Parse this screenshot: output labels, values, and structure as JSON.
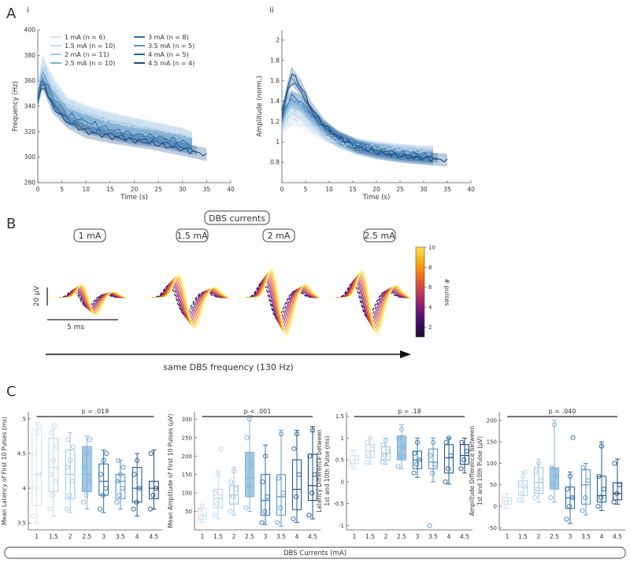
{
  "panel_labels": {
    "A": "A",
    "B": "B",
    "C": "C",
    "i": "i",
    "ii": "ii"
  },
  "colors": {
    "currents": [
      "#d4e3f1",
      "#bcd7ec",
      "#9ec6e3",
      "#7fb2d8",
      "#2f6ea8",
      "#5a97c8",
      "#215d97",
      "#174b80"
    ],
    "axis": "#444444",
    "sig": "#222222",
    "pulse_scale": [
      "#1b0b36",
      "#4a0f6d",
      "#7b1e7a",
      "#a52c60",
      "#cf4446",
      "#ed6925",
      "#fb9b06",
      "#f7d13d",
      "#fcffa4"
    ]
  },
  "legend": [
    "1 mA (n = 6)",
    "1.5 mA (n = 10)",
    "2 mA (n = 11)",
    "2.5 mA (n = 10)",
    "3 mA (n = 8)",
    "3.5 mA (n = 5)",
    "4 mA (n = 5)",
    "4.5 mA (n = 4)"
  ],
  "chart_data": [
    {
      "id": "A-i",
      "type": "line",
      "xlabel": "Time (s)",
      "ylabel": "Frequency (Hz)",
      "xlim": [
        0,
        40
      ],
      "ylim": [
        280,
        400
      ],
      "xticks": [
        0,
        5,
        10,
        15,
        20,
        25,
        30,
        35,
        40
      ],
      "yticks": [
        280,
        300,
        320,
        340,
        360,
        380,
        400
      ],
      "series": [
        {
          "name": "1 mA (n = 6)",
          "x": [
            0,
            1,
            3,
            6,
            10,
            15,
            20,
            25,
            30,
            32
          ],
          "values": [
            355,
            378,
            362,
            345,
            338,
            332,
            328,
            324,
            320,
            316
          ]
        },
        {
          "name": "1.5 mA (n = 10)",
          "x": [
            0,
            1,
            3,
            6,
            10,
            15,
            20,
            25,
            30,
            32
          ],
          "values": [
            355,
            375,
            358,
            342,
            336,
            330,
            326,
            322,
            318,
            314
          ]
        },
        {
          "name": "2 mA (n = 11)",
          "x": [
            0,
            1,
            3,
            6,
            10,
            15,
            20,
            25,
            30,
            32
          ],
          "values": [
            352,
            372,
            356,
            340,
            333,
            328,
            324,
            320,
            316,
            314
          ]
        },
        {
          "name": "2.5 mA (n = 10)",
          "x": [
            0,
            1,
            3,
            6,
            10,
            15,
            20,
            25,
            30,
            32
          ],
          "values": [
            350,
            368,
            352,
            338,
            332,
            326,
            322,
            318,
            314,
            312
          ]
        },
        {
          "name": "3 mA (n = 8)",
          "x": [
            0,
            1,
            3,
            6,
            10,
            15,
            20,
            25,
            30,
            32
          ],
          "values": [
            348,
            364,
            348,
            334,
            328,
            322,
            318,
            316,
            312,
            310
          ]
        },
        {
          "name": "3.5 mA (n = 5)",
          "x": [
            0,
            1,
            3,
            6,
            10,
            15,
            20,
            25,
            30,
            32
          ],
          "values": [
            346,
            362,
            346,
            332,
            326,
            320,
            316,
            314,
            310,
            308
          ]
        },
        {
          "name": "4 mA (n = 5)",
          "x": [
            0,
            1,
            3,
            6,
            10,
            15,
            20,
            25,
            30,
            33
          ],
          "values": [
            345,
            360,
            342,
            330,
            322,
            318,
            314,
            312,
            308,
            305
          ]
        },
        {
          "name": "4.5 mA (n = 4)",
          "x": [
            0,
            1,
            3,
            6,
            10,
            15,
            20,
            25,
            30,
            35
          ],
          "values": [
            344,
            358,
            340,
            328,
            320,
            316,
            313,
            310,
            306,
            302
          ]
        }
      ]
    },
    {
      "id": "A-ii",
      "type": "line",
      "xlabel": "Time (s)",
      "ylabel": "Amplitude (norm.)",
      "xlim": [
        0,
        40
      ],
      "ylim": [
        0.6,
        2.1
      ],
      "xticks": [
        0,
        5,
        10,
        15,
        20,
        25,
        30,
        35,
        40
      ],
      "yticks": [
        0.8,
        1.0,
        1.2,
        1.4,
        1.6,
        1.8,
        2.0
      ],
      "ytick_labels": [
        "0.8",
        "1",
        "1.2",
        "1.4",
        "1.6",
        "1.8",
        "2"
      ],
      "series": [
        {
          "name": "1 mA (n = 6)",
          "x": [
            0,
            1,
            2,
            4,
            6,
            9,
            12,
            16,
            20,
            25,
            30,
            32
          ],
          "values": [
            1.1,
            1.15,
            1.2,
            1.18,
            1.12,
            1.05,
            1.0,
            0.96,
            0.95,
            0.93,
            0.92,
            0.92
          ]
        },
        {
          "name": "1.5 mA (n = 10)",
          "x": [
            0,
            1,
            2,
            4,
            6,
            9,
            12,
            16,
            20,
            25,
            30,
            32
          ],
          "values": [
            1.15,
            1.22,
            1.28,
            1.25,
            1.18,
            1.08,
            1.0,
            0.95,
            0.93,
            0.92,
            0.9,
            0.9
          ]
        },
        {
          "name": "2 mA (n = 11)",
          "x": [
            0,
            1,
            2,
            4,
            6,
            9,
            12,
            16,
            20,
            25,
            30,
            32
          ],
          "values": [
            1.18,
            1.28,
            1.34,
            1.3,
            1.22,
            1.1,
            1.02,
            0.96,
            0.93,
            0.9,
            0.88,
            0.88
          ]
        },
        {
          "name": "2.5 mA (n = 10)",
          "x": [
            0,
            1,
            2,
            4,
            6,
            9,
            12,
            16,
            20,
            25,
            30,
            32
          ],
          "values": [
            1.2,
            1.32,
            1.38,
            1.34,
            1.25,
            1.12,
            1.03,
            0.96,
            0.92,
            0.89,
            0.87,
            0.86
          ]
        },
        {
          "name": "3 mA (n = 8)",
          "x": [
            0,
            1,
            2,
            4,
            6,
            9,
            12,
            16,
            20,
            25,
            30,
            32
          ],
          "values": [
            1.22,
            1.38,
            1.45,
            1.4,
            1.28,
            1.14,
            1.04,
            0.96,
            0.92,
            0.88,
            0.86,
            0.85
          ]
        },
        {
          "name": "3.5 mA (n = 5)",
          "x": [
            0,
            1,
            2,
            4,
            6,
            9,
            12,
            16,
            20,
            25,
            30,
            32
          ],
          "values": [
            1.2,
            1.35,
            1.42,
            1.38,
            1.26,
            1.12,
            1.03,
            0.95,
            0.91,
            0.88,
            0.86,
            0.85
          ]
        },
        {
          "name": "4 mA (n = 5)",
          "x": [
            0,
            1,
            2,
            4,
            6,
            9,
            12,
            16,
            20,
            25,
            30,
            33
          ],
          "values": [
            1.25,
            1.45,
            1.6,
            1.5,
            1.32,
            1.15,
            1.04,
            0.96,
            0.91,
            0.87,
            0.85,
            0.84
          ]
        },
        {
          "name": "4.5 mA (n = 4)",
          "x": [
            0,
            1,
            2,
            4,
            6,
            9,
            12,
            16,
            20,
            25,
            30,
            35
          ],
          "values": [
            1.28,
            1.5,
            1.68,
            1.55,
            1.35,
            1.16,
            1.04,
            0.95,
            0.9,
            0.86,
            0.84,
            0.82
          ]
        }
      ]
    },
    {
      "id": "B",
      "type": "line",
      "title": "DBS currents",
      "currents": [
        "1 mA",
        "1.5 mA",
        "2 mA",
        "2.5 mA"
      ],
      "amplitude_scale": [
        0.45,
        0.8,
        1.0,
        0.95
      ],
      "scale_y_label": "20 µV",
      "scale_x_label": "5 ms",
      "colorbar": {
        "label": "# pulses",
        "min": 1,
        "max": 10,
        "ticks": [
          2,
          4,
          6,
          8,
          10
        ]
      },
      "arrow_label": "same DBS frequency (130 Hz)"
    },
    {
      "id": "C-1",
      "type": "box",
      "ylabel": [
        "Mean Latency of First 10 Pulses (ms)"
      ],
      "categories": [
        "1",
        "1.5",
        "2",
        "2.5",
        "3",
        "3.5",
        "4",
        "4.5"
      ],
      "ylim": [
        3.4,
        5.1
      ],
      "yticks": [
        3.5,
        4.0,
        4.5,
        5.0
      ],
      "ytick_labels": [
        "3.5",
        "4",
        "4.5",
        "5"
      ],
      "significance": "p = .018",
      "boxes": [
        [
          3.5,
          3.75,
          4.2,
          4.85,
          4.95
        ],
        [
          3.6,
          3.95,
          4.3,
          4.72,
          4.85
        ],
        [
          3.65,
          3.85,
          4.2,
          4.55,
          4.8
        ],
        [
          3.7,
          3.95,
          4.2,
          4.6,
          4.75
        ],
        [
          3.65,
          3.9,
          4.1,
          4.35,
          4.55
        ],
        [
          3.7,
          3.85,
          4.1,
          4.2,
          4.4
        ],
        [
          3.6,
          3.8,
          4.0,
          4.3,
          4.5
        ],
        [
          3.7,
          3.85,
          4.0,
          4.1,
          4.55
        ]
      ],
      "points": [
        [
          3.6,
          4.0,
          4.2,
          4.5,
          4.8,
          4.9
        ],
        [
          3.7,
          3.9,
          4.1,
          4.2,
          4.4,
          4.6,
          4.8,
          4.9
        ],
        [
          3.7,
          3.9,
          4.1,
          4.3,
          4.4,
          4.6,
          4.7
        ],
        [
          3.8,
          3.9,
          4.1,
          4.3,
          4.5,
          4.7
        ],
        [
          3.7,
          3.9,
          4.0,
          4.2,
          4.4,
          4.5
        ],
        [
          3.8,
          3.9,
          4.0,
          4.1,
          4.2,
          4.3,
          4.4
        ],
        [
          3.7,
          3.8,
          4.0,
          4.2,
          4.4
        ],
        [
          3.7,
          3.9,
          4.0,
          4.5
        ]
      ]
    },
    {
      "id": "C-2",
      "type": "box",
      "ylabel": [
        "Mean Amplitude of First 10 Pulses (µV)"
      ],
      "categories": [
        "1",
        "1.5",
        "2",
        "2.5",
        "3",
        "3.5",
        "4",
        "4.5"
      ],
      "ylim": [
        0,
        320
      ],
      "yticks": [
        50,
        100,
        150,
        200,
        250,
        300
      ],
      "significance": "p < .001",
      "boxes": [
        [
          20,
          28,
          38,
          58,
          70
        ],
        [
          30,
          60,
          85,
          110,
          160
        ],
        [
          40,
          70,
          95,
          120,
          170
        ],
        [
          50,
          90,
          140,
          210,
          310
        ],
        [
          15,
          40,
          80,
          150,
          230
        ],
        [
          10,
          40,
          90,
          150,
          270
        ],
        [
          20,
          55,
          110,
          190,
          270
        ],
        [
          30,
          80,
          120,
          205,
          280
        ]
      ],
      "points": [
        [
          25,
          35,
          40,
          55,
          65
        ],
        [
          40,
          70,
          90,
          100,
          150,
          220
        ],
        [
          50,
          90,
          110,
          130,
          160
        ],
        [
          60,
          120,
          180,
          250,
          300
        ],
        [
          20,
          50,
          90,
          130,
          200
        ],
        [
          20,
          60,
          100,
          140,
          260
        ],
        [
          30,
          90,
          150,
          220,
          260
        ],
        [
          40,
          100,
          150,
          200,
          270
        ]
      ]
    },
    {
      "id": "C-3",
      "type": "box",
      "ylabel": [
        "Latency Difference between",
        "1st and 10th Pulse (ms)"
      ],
      "categories": [
        "1",
        "1.5",
        "2",
        "2.5",
        "3",
        "3.5",
        "4",
        "4.5"
      ],
      "ylim": [
        -1.1,
        1.6
      ],
      "yticks": [
        -1.0,
        -0.5,
        0,
        0.5,
        1.0,
        1.5
      ],
      "ytick_labels": [
        "-1",
        "-0.5",
        "0",
        "0.5",
        "1",
        "1.5"
      ],
      "significance": "p = .18",
      "boxes": [
        [
          0.3,
          0.42,
          0.5,
          0.6,
          0.72
        ],
        [
          0.4,
          0.55,
          0.7,
          0.85,
          1.0
        ],
        [
          0.4,
          0.5,
          0.65,
          0.8,
          1.0
        ],
        [
          0.3,
          0.5,
          0.8,
          1.05,
          1.3
        ],
        [
          0.1,
          0.3,
          0.5,
          0.7,
          1.0
        ],
        [
          0.0,
          0.3,
          0.45,
          0.75,
          1.0
        ],
        [
          -0.05,
          0.2,
          0.55,
          0.85,
          1.0
        ],
        [
          0.2,
          0.4,
          0.6,
          0.85,
          1.0
        ]
      ],
      "points": [
        [
          0.35,
          0.45,
          0.55,
          0.7
        ],
        [
          0.45,
          0.6,
          0.75,
          0.9,
          1.0
        ],
        [
          0.45,
          0.6,
          0.7,
          0.85,
          0.95
        ],
        [
          0.35,
          0.6,
          0.8,
          1.0,
          1.2
        ],
        [
          0.2,
          0.4,
          0.5,
          0.65,
          0.9
        ],
        [
          -1.0,
          0.2,
          0.4,
          0.6,
          0.9
        ],
        [
          0.0,
          0.3,
          0.6,
          0.9,
          1.0
        ],
        [
          0.3,
          0.5,
          0.7,
          0.9
        ]
      ]
    },
    {
      "id": "C-4",
      "type": "box",
      "ylabel": [
        "Amplitude Difference between",
        "1st and 10th Pulse (µV)"
      ],
      "categories": [
        "1",
        "1.5",
        "2",
        "2.5",
        "3",
        "3.5",
        "4",
        "4.5"
      ],
      "ylim": [
        -55,
        220
      ],
      "yticks": [
        -50,
        0,
        50,
        100,
        150,
        200
      ],
      "significance": "p = .040",
      "boxes": [
        [
          -5,
          5,
          12,
          20,
          30
        ],
        [
          10,
          25,
          45,
          60,
          80
        ],
        [
          10,
          30,
          55,
          90,
          110
        ],
        [
          10,
          40,
          70,
          90,
          200
        ],
        [
          -40,
          -5,
          20,
          45,
          80
        ],
        [
          -20,
          5,
          50,
          85,
          100
        ],
        [
          -10,
          10,
          25,
          70,
          150
        ],
        [
          5,
          15,
          30,
          55,
          110
        ]
      ],
      "points": [
        [
          0,
          10,
          15,
          25
        ],
        [
          15,
          30,
          45,
          55,
          70,
          80
        ],
        [
          20,
          40,
          60,
          80,
          100
        ],
        [
          20,
          50,
          70,
          90,
          190
        ],
        [
          -30,
          0,
          20,
          40,
          70,
          160
        ],
        [
          -10,
          20,
          60,
          90
        ],
        [
          0,
          20,
          40,
          70,
          140
        ],
        [
          10,
          30,
          50,
          100
        ]
      ]
    }
  ],
  "footer_label": "DBS Currents (mA)"
}
